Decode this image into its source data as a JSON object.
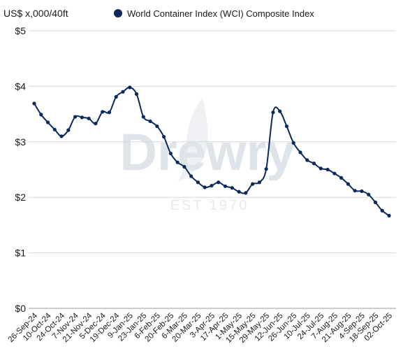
{
  "chart_data": {
    "type": "line",
    "unit_label": "US$ x,000/40ft",
    "legend": [
      {
        "name": "World Container Index (WCI) Composite Index",
        "color": "#0b2a5b"
      }
    ],
    "legend_placement": "top",
    "grid": "horizontal",
    "ylim": [
      0,
      5
    ],
    "yticks": [
      0,
      1,
      2,
      3,
      4,
      5
    ],
    "ytick_labels": [
      "$0",
      "$1",
      "$2",
      "$3",
      "$4",
      "$5"
    ],
    "xtick_labels": [
      "26-Sep-24",
      "10-Oct-24",
      "24-Oct-24",
      "7-Nov-24",
      "21-Nov-24",
      "5-Dec-24",
      "19-Dec-24",
      "9-Jan-25",
      "23-Jan-25",
      "6-Feb-25",
      "20-Feb-25",
      "6-Mar-25",
      "20-Mar-25",
      "3-Apr-25",
      "17-Apr-25",
      "1-May-25",
      "15-May-25",
      "29-May-25",
      "12-Jun-25",
      "26-Jun-25",
      "10-Jul-25",
      "24-Jul-25",
      "7-Aug-25",
      "21-Aug-25",
      "4-Sep-25",
      "18-Sep-25",
      "02-Oct-25"
    ],
    "series": [
      {
        "name": "World Container Index (WCI) Composite Index",
        "color": "#0b2a5b",
        "values": [
          3.69,
          3.49,
          3.35,
          3.22,
          3.1,
          3.21,
          3.45,
          3.44,
          3.42,
          3.33,
          3.54,
          3.53,
          3.81,
          3.9,
          3.98,
          3.86,
          3.45,
          3.37,
          3.28,
          3.09,
          2.79,
          2.63,
          2.55,
          2.38,
          2.27,
          2.18,
          2.21,
          2.27,
          2.2,
          2.17,
          2.1,
          2.08,
          2.24,
          2.27,
          2.51,
          3.53,
          3.55,
          3.28,
          2.98,
          2.81,
          2.67,
          2.61,
          2.52,
          2.5,
          2.43,
          2.35,
          2.24,
          2.12,
          2.11,
          2.05,
          1.91,
          1.76,
          1.67
        ]
      }
    ],
    "watermark": {
      "brand": "Drewry",
      "est": "EST 1970"
    }
  }
}
